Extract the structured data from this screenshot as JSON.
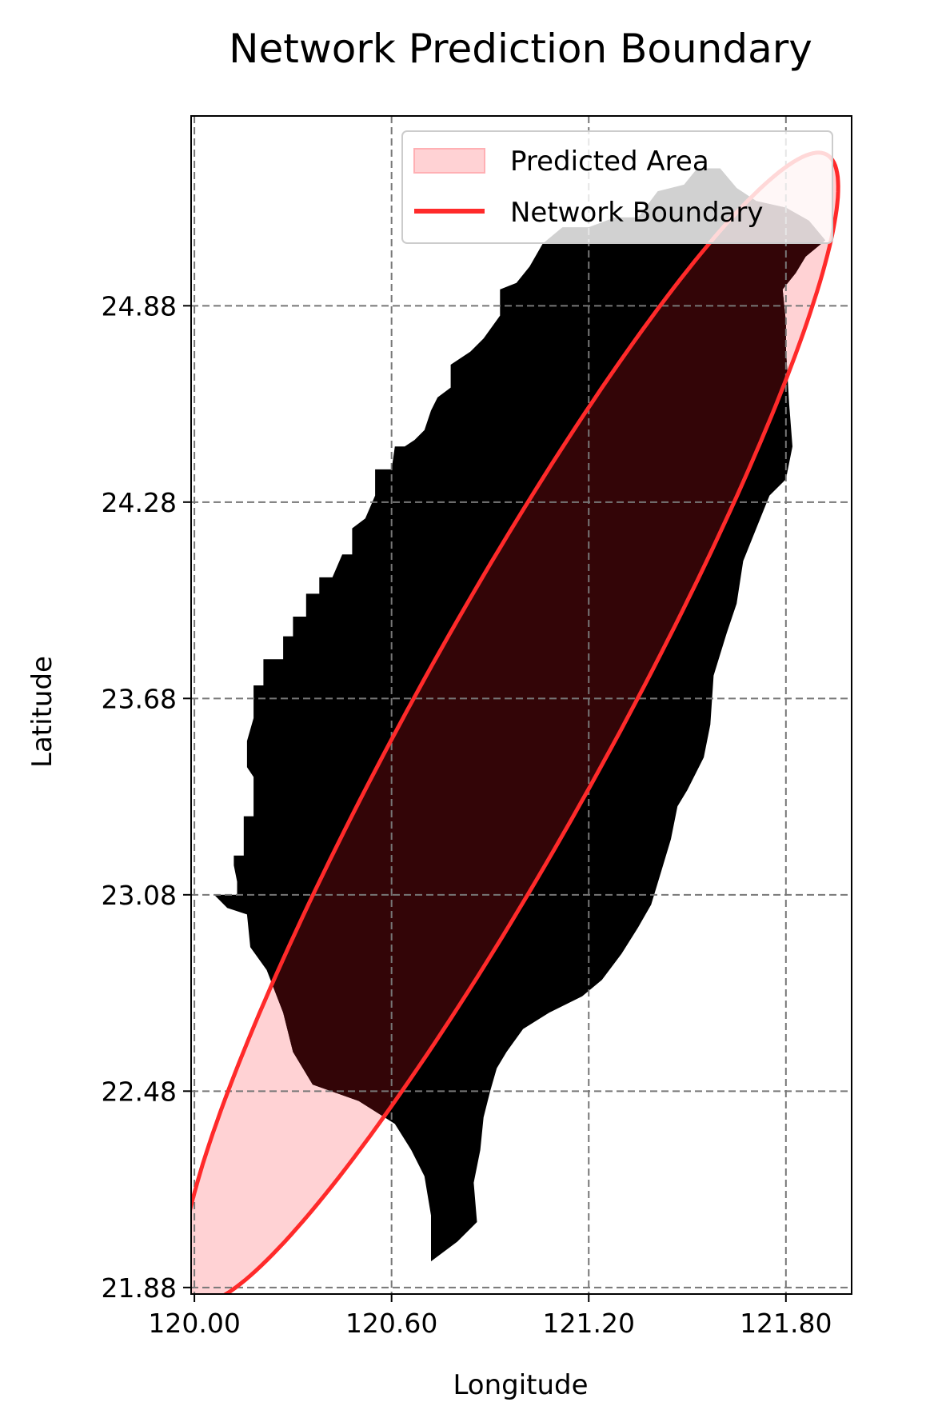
{
  "chart_data": {
    "type": "area",
    "title": "Network Prediction Boundary",
    "xlabel": "Longitude",
    "ylabel": "Latitude",
    "xlim": [
      119.99,
      122.0
    ],
    "ylim": [
      21.86,
      25.46
    ],
    "xticks": [
      120.0,
      120.6,
      121.2,
      121.8
    ],
    "xtick_labels": [
      "120.00",
      "120.60",
      "121.20",
      "121.80"
    ],
    "yticks": [
      21.88,
      22.48,
      23.08,
      23.68,
      24.28,
      24.88
    ],
    "ytick_labels": [
      "21.88",
      "22.48",
      "23.08",
      "23.68",
      "24.28",
      "24.88"
    ],
    "grid": true,
    "legend_position": "top-right",
    "legend": [
      {
        "label": "Predicted Area",
        "type": "patch"
      },
      {
        "label": "Network Boundary",
        "type": "line"
      }
    ],
    "colors": {
      "land": "#000000",
      "overlap": "#330507",
      "predicted_fill": "#ffd2d4",
      "boundary": "#ff2a2a",
      "grid": "#777777"
    },
    "landmass_outline": [
      [
        120.06,
        23.08
      ],
      [
        120.13,
        23.08
      ],
      [
        120.13,
        23.12
      ],
      [
        120.12,
        23.17
      ],
      [
        120.12,
        23.2
      ],
      [
        120.15,
        23.2
      ],
      [
        120.15,
        23.32
      ],
      [
        120.18,
        23.32
      ],
      [
        120.18,
        23.44
      ],
      [
        120.16,
        23.47
      ],
      [
        120.16,
        23.55
      ],
      [
        120.18,
        23.62
      ],
      [
        120.18,
        23.72
      ],
      [
        120.21,
        23.72
      ],
      [
        120.21,
        23.8
      ],
      [
        120.27,
        23.8
      ],
      [
        120.27,
        23.87
      ],
      [
        120.3,
        23.87
      ],
      [
        120.3,
        23.93
      ],
      [
        120.34,
        23.93
      ],
      [
        120.34,
        24.0
      ],
      [
        120.38,
        24.0
      ],
      [
        120.38,
        24.05
      ],
      [
        120.42,
        24.05
      ],
      [
        120.45,
        24.12
      ],
      [
        120.48,
        24.12
      ],
      [
        120.48,
        24.2
      ],
      [
        120.52,
        24.23
      ],
      [
        120.55,
        24.3
      ],
      [
        120.55,
        24.38
      ],
      [
        120.6,
        24.38
      ],
      [
        120.61,
        24.45
      ],
      [
        120.64,
        24.45
      ],
      [
        120.67,
        24.47
      ],
      [
        120.7,
        24.5
      ],
      [
        120.72,
        24.56
      ],
      [
        120.74,
        24.6
      ],
      [
        120.78,
        24.63
      ],
      [
        120.78,
        24.7
      ],
      [
        120.84,
        24.74
      ],
      [
        120.88,
        24.78
      ],
      [
        120.93,
        24.85
      ],
      [
        120.93,
        24.93
      ],
      [
        120.98,
        24.95
      ],
      [
        121.02,
        25.0
      ],
      [
        121.06,
        25.07
      ],
      [
        121.12,
        25.12
      ],
      [
        121.2,
        25.12
      ],
      [
        121.28,
        25.15
      ],
      [
        121.35,
        25.15
      ],
      [
        121.41,
        25.23
      ],
      [
        121.49,
        25.25
      ],
      [
        121.53,
        25.3
      ],
      [
        121.6,
        25.3
      ],
      [
        121.65,
        25.24
      ],
      [
        121.71,
        25.2
      ],
      [
        121.8,
        25.18
      ],
      [
        121.87,
        25.14
      ],
      [
        121.92,
        25.08
      ],
      [
        121.86,
        25.03
      ],
      [
        121.83,
        24.98
      ],
      [
        121.79,
        24.93
      ],
      [
        121.8,
        24.83
      ],
      [
        121.8,
        24.75
      ],
      [
        121.81,
        24.58
      ],
      [
        121.82,
        24.45
      ],
      [
        121.8,
        24.35
      ],
      [
        121.75,
        24.3
      ],
      [
        121.71,
        24.2
      ],
      [
        121.67,
        24.1
      ],
      [
        121.65,
        23.97
      ],
      [
        121.62,
        23.88
      ],
      [
        121.58,
        23.75
      ],
      [
        121.57,
        23.6
      ],
      [
        121.55,
        23.5
      ],
      [
        121.5,
        23.4
      ],
      [
        121.47,
        23.35
      ],
      [
        121.45,
        23.25
      ],
      [
        121.42,
        23.15
      ],
      [
        121.39,
        23.05
      ],
      [
        121.35,
        22.98
      ],
      [
        121.3,
        22.9
      ],
      [
        121.24,
        22.82
      ],
      [
        121.18,
        22.77
      ],
      [
        121.08,
        22.72
      ],
      [
        121.0,
        22.67
      ],
      [
        120.95,
        22.6
      ],
      [
        120.92,
        22.55
      ],
      [
        120.9,
        22.48
      ],
      [
        120.88,
        22.4
      ],
      [
        120.87,
        22.3
      ],
      [
        120.85,
        22.2
      ],
      [
        120.86,
        22.08
      ],
      [
        120.8,
        22.02
      ],
      [
        120.72,
        21.96
      ],
      [
        120.72,
        22.1
      ],
      [
        120.7,
        22.22
      ],
      [
        120.66,
        22.3
      ],
      [
        120.61,
        22.38
      ],
      [
        120.5,
        22.45
      ],
      [
        120.36,
        22.5
      ],
      [
        120.3,
        22.6
      ],
      [
        120.27,
        22.72
      ],
      [
        120.22,
        22.85
      ],
      [
        120.17,
        22.92
      ],
      [
        120.16,
        23.02
      ],
      [
        120.1,
        23.04
      ],
      [
        120.06,
        23.08
      ]
    ],
    "boundary_ellipse": {
      "center": [
        120.96,
        23.59
      ],
      "semi_major": 2.0,
      "semi_minor": 0.3,
      "major_axis_direction": [
        0.482,
        0.876
      ]
    }
  }
}
